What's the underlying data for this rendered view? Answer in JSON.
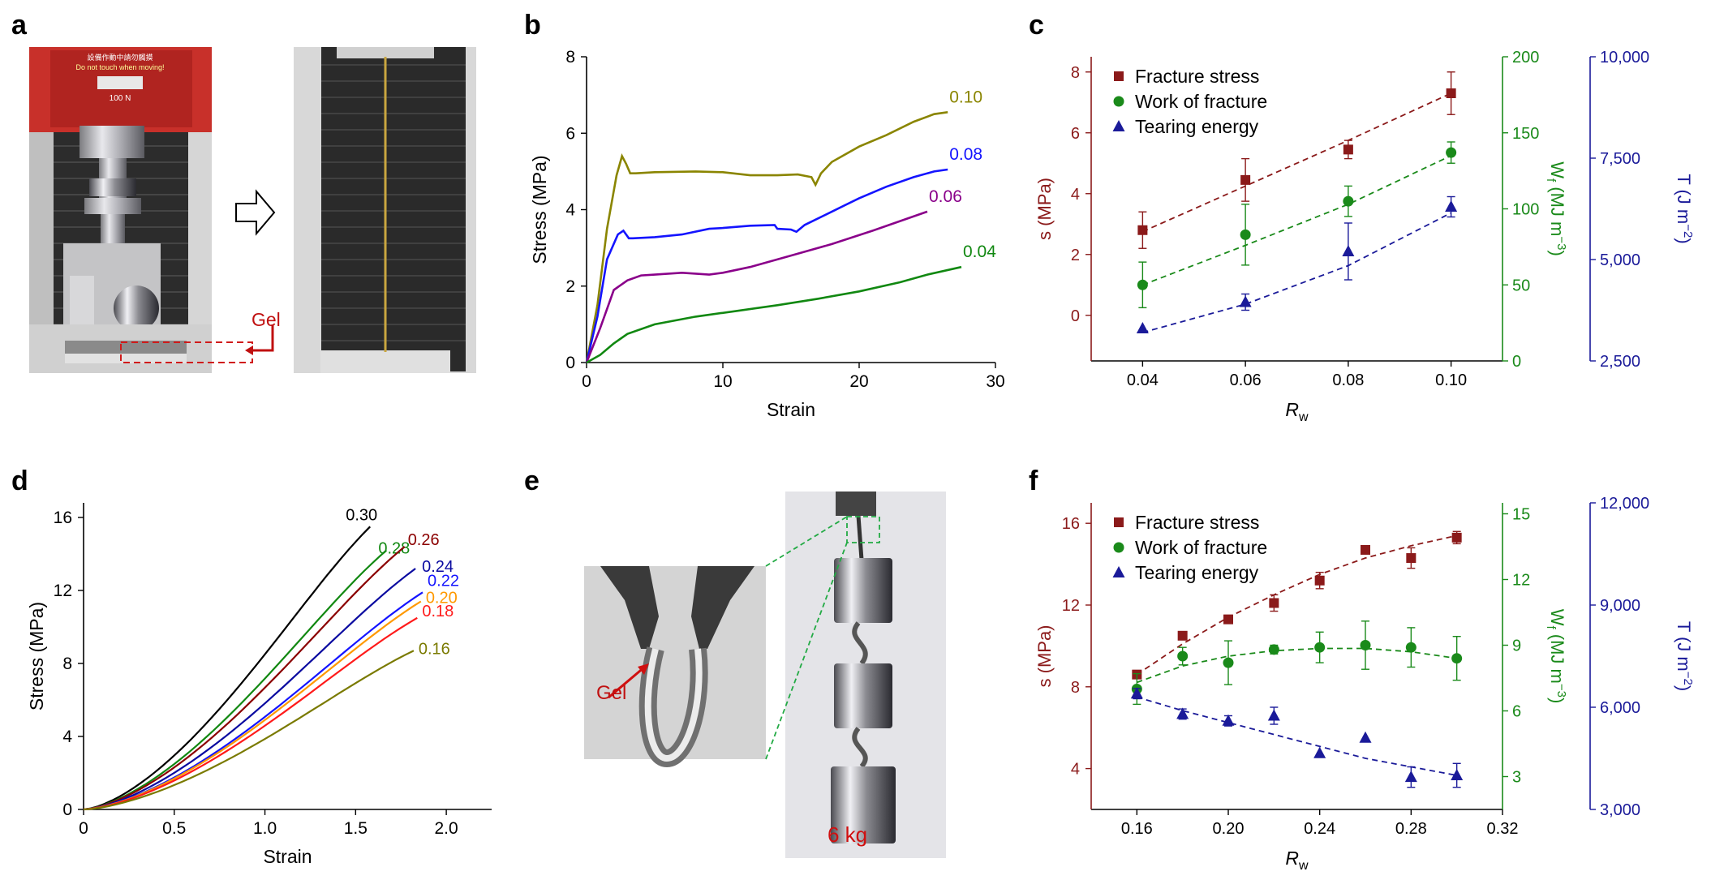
{
  "panels": {
    "a": "a",
    "b": "b",
    "c": "c",
    "d": "d",
    "e": "e",
    "f": "f"
  },
  "photo_labels": {
    "a_gel": "Gel",
    "e_gel": "Gel",
    "e_weight": "6 kg"
  },
  "a_sign": {
    "line1": "設備作動中請勿觸摸",
    "line2": "Do not touch when moving!",
    "line3": "100 N"
  },
  "colors": {
    "olive": "#8a8500",
    "blue": "#1414ff",
    "purple": "#8a008a",
    "green": "#118811",
    "black": "#000000",
    "darkred": "#8b0000",
    "orange": "#ff9900",
    "red": "#ff1a1a",
    "navy": "#0a0aa0",
    "darkolive": "#7a7a00",
    "axis_red": "#8b1a1a",
    "axis_green": "#1a8a1a",
    "axis_blue": "#1a1a99"
  },
  "chart_data": [
    {
      "id": "b",
      "type": "line",
      "xlabel": "Strain",
      "ylabel": "Stress (MPa)",
      "xlim": [
        0,
        30
      ],
      "ylim": [
        0,
        8
      ],
      "xticks": [
        0,
        10,
        20,
        30
      ],
      "yticks": [
        0,
        2,
        4,
        6,
        8
      ],
      "series": [
        {
          "name": "0.10",
          "color": "#8a8500",
          "x": [
            0,
            0.8,
            1.5,
            2.2,
            2.6,
            2.9,
            3.2,
            3.6,
            5,
            8,
            10,
            12,
            14,
            15.5,
            16.5,
            16.8,
            17.2,
            18,
            20,
            22,
            24,
            25.5,
            26.5
          ],
          "y": [
            0,
            1.5,
            3.5,
            4.9,
            5.4,
            5.2,
            4.95,
            4.95,
            4.98,
            5,
            4.98,
            4.9,
            4.9,
            4.92,
            4.85,
            4.65,
            4.95,
            5.25,
            5.65,
            5.95,
            6.3,
            6.5,
            6.55
          ]
        },
        {
          "name": "0.08",
          "color": "#1414ff",
          "x": [
            0,
            0.8,
            1.5,
            2.3,
            2.7,
            3.1,
            3.4,
            5,
            7,
            9,
            10,
            12,
            13.8,
            14,
            15,
            15.4,
            16,
            18,
            20,
            22,
            24,
            25.5,
            26.5
          ],
          "y": [
            0,
            1.2,
            2.7,
            3.35,
            3.45,
            3.25,
            3.25,
            3.28,
            3.35,
            3.5,
            3.52,
            3.58,
            3.6,
            3.5,
            3.48,
            3.42,
            3.6,
            3.95,
            4.3,
            4.6,
            4.85,
            5,
            5.05
          ]
        },
        {
          "name": "0.06",
          "color": "#8a008a",
          "x": [
            0,
            1,
            2,
            3,
            4,
            5,
            7,
            9,
            10,
            12,
            15,
            18,
            21,
            23,
            25
          ],
          "y": [
            0,
            0.9,
            1.9,
            2.15,
            2.28,
            2.3,
            2.35,
            2.3,
            2.35,
            2.5,
            2.8,
            3.1,
            3.45,
            3.7,
            3.95
          ]
        },
        {
          "name": "0.04",
          "color": "#118811",
          "x": [
            0,
            1,
            2,
            3,
            5,
            8,
            11,
            14,
            17,
            20,
            23,
            25,
            27.5
          ],
          "y": [
            0,
            0.2,
            0.5,
            0.75,
            1,
            1.2,
            1.35,
            1.5,
            1.67,
            1.86,
            2.1,
            2.3,
            2.5
          ]
        }
      ]
    },
    {
      "id": "c",
      "type": "scatter",
      "xlabel": "R",
      "xlabel_sub": "w",
      "ylabel_left": "s (MPa)",
      "ylabel_mid": "W",
      "ylabel_mid_sub": "f",
      "ylabel_mid_unit": " (MJ m",
      "ylabel_mid_exp": "−3",
      "ylabel_right": "T (J m",
      "ylabel_right_exp": "−2",
      "xlim": [
        0.03,
        0.11
      ],
      "xticks": [
        0.04,
        0.06,
        0.08,
        0.1
      ],
      "xticklabels": [
        "0.04",
        "0.06",
        "0.08",
        "0.10"
      ],
      "ylim_left": [
        -1.5,
        8.5
      ],
      "yticks_left": [
        0,
        2,
        4,
        6,
        8
      ],
      "ylim_mid": [
        0,
        200
      ],
      "yticks_mid": [
        0,
        50,
        100,
        150,
        200
      ],
      "ylim_right": [
        2500,
        10000
      ],
      "yticks_right": [
        2500,
        5000,
        7500,
        10000
      ],
      "yticklabels_right": [
        "2,500",
        "5,000",
        "7,500",
        "10,000"
      ],
      "legend": [
        "Fracture stress",
        "Work of fracture",
        "Tearing energy"
      ],
      "series": [
        {
          "name": "Fracture stress",
          "axis": "left",
          "marker": "square",
          "color": "#8b1a1a",
          "x": [
            0.04,
            0.06,
            0.08,
            0.1
          ],
          "y": [
            2.8,
            4.45,
            5.45,
            7.3
          ],
          "err": [
            0.6,
            0.7,
            0.3,
            0.7
          ],
          "fit": [
            2.75,
            4.25,
            5.75,
            7.3
          ]
        },
        {
          "name": "Work of fracture",
          "axis": "mid",
          "marker": "circle",
          "color": "#1a8a1a",
          "x": [
            0.04,
            0.06,
            0.08,
            0.1
          ],
          "y": [
            50,
            83,
            105,
            137
          ],
          "err": [
            15,
            20,
            10,
            7
          ],
          "fit": [
            50,
            76,
            103,
            135
          ]
        },
        {
          "name": "Tearing energy",
          "axis": "right",
          "marker": "triangle",
          "color": "#1a1a99",
          "x": [
            0.04,
            0.06,
            0.08,
            0.1
          ],
          "y": [
            3300,
            3950,
            5200,
            6300
          ],
          "err": [
            0,
            200,
            700,
            250
          ],
          "fit": [
            3200,
            3900,
            4850,
            6150
          ]
        }
      ]
    },
    {
      "id": "d",
      "type": "line",
      "xlabel": "Strain",
      "ylabel": "Stress (MPa)",
      "xlim": [
        0,
        2.25
      ],
      "ylim": [
        0,
        16.8
      ],
      "xticks": [
        0,
        0.5,
        1,
        1.5,
        2
      ],
      "xticklabels": [
        "0",
        "0.5",
        "1.0",
        "1.5",
        "2.0"
      ],
      "yticks": [
        0,
        4,
        8,
        12,
        16
      ],
      "series": [
        {
          "name": "0.30",
          "color": "#000000",
          "xmax": 1.58,
          "ymax": 15.5
        },
        {
          "name": "0.28",
          "color": "#118811",
          "xmax": 1.67,
          "ymax": 14.2
        },
        {
          "name": "0.26",
          "color": "#8b0000",
          "xmax": 1.77,
          "ymax": 14.4
        },
        {
          "name": "0.24",
          "color": "#0a0aa0",
          "xmax": 1.83,
          "ymax": 13.2
        },
        {
          "name": "0.22",
          "color": "#1414ff",
          "xmax": 1.87,
          "ymax": 11.9
        },
        {
          "name": "0.20",
          "color": "#ff9900",
          "xmax": 1.86,
          "ymax": 11.4
        },
        {
          "name": "0.18",
          "color": "#ff1a1a",
          "xmax": 1.84,
          "ymax": 10.5
        },
        {
          "name": "0.16",
          "color": "#7a7a00",
          "xmax": 1.82,
          "ymax": 8.7
        }
      ]
    },
    {
      "id": "f",
      "type": "scatter",
      "xlabel": "R",
      "xlabel_sub": "w",
      "ylabel_left": "s (MPa)",
      "ylabel_mid": "W",
      "ylabel_mid_sub": "f",
      "ylabel_mid_unit": " (MJ m",
      "ylabel_mid_exp": "−3",
      "ylabel_right": "T (J m",
      "ylabel_right_exp": "−2",
      "xlim": [
        0.14,
        0.32
      ],
      "xticks": [
        0.16,
        0.2,
        0.24,
        0.28,
        0.32
      ],
      "xticklabels": [
        "0.16",
        "0.20",
        "0.24",
        "0.28",
        "0.32"
      ],
      "ylim_left": [
        2,
        17
      ],
      "yticks_left": [
        4,
        8,
        12,
        16
      ],
      "ylim_mid": [
        1.5,
        15.5
      ],
      "yticks_mid": [
        3,
        6,
        9,
        12,
        15
      ],
      "ylim_right": [
        3000,
        12000
      ],
      "yticks_right": [
        3000,
        6000,
        9000,
        12000
      ],
      "yticklabels_right": [
        "3,000",
        "6,000",
        "9,000",
        "12,000"
      ],
      "legend": [
        "Fracture stress",
        "Work of fracture",
        "Tearing energy"
      ],
      "series": [
        {
          "name": "Fracture stress",
          "axis": "left",
          "marker": "square",
          "color": "#8b1a1a",
          "x": [
            0.16,
            0.18,
            0.2,
            0.22,
            0.24,
            0.26,
            0.28,
            0.3
          ],
          "y": [
            8.6,
            10.5,
            11.3,
            12.1,
            13.2,
            14.7,
            14.3,
            15.3
          ],
          "err": [
            0.2,
            0,
            0.2,
            0.4,
            0.4,
            0,
            0.5,
            0.3
          ],
          "fit": [
            8.6,
            10.1,
            11.4,
            12.5,
            13.5,
            14.3,
            14.9,
            15.4
          ]
        },
        {
          "name": "Work of fracture",
          "axis": "mid",
          "marker": "circle",
          "color": "#1a8a1a",
          "x": [
            0.16,
            0.18,
            0.2,
            0.22,
            0.24,
            0.26,
            0.28,
            0.3
          ],
          "y": [
            7,
            8.5,
            8.2,
            8.8,
            8.9,
            9,
            8.9,
            8.4
          ],
          "err": [
            0.7,
            0.4,
            1,
            0.2,
            0.7,
            1.1,
            0.9,
            1
          ],
          "fit": [
            7.3,
            8.05,
            8.5,
            8.75,
            8.85,
            8.85,
            8.7,
            8.4
          ]
        },
        {
          "name": "Tearing energy",
          "axis": "right",
          "marker": "triangle",
          "color": "#1a1a99",
          "x": [
            0.16,
            0.18,
            0.2,
            0.22,
            0.24,
            0.26,
            0.28,
            0.3
          ],
          "y": [
            6400,
            5800,
            5600,
            5750,
            4650,
            5100,
            3950,
            4000
          ],
          "err": [
            150,
            150,
            150,
            250,
            0,
            0,
            300,
            350
          ],
          "fit": [
            6300,
            5900,
            5550,
            5200,
            4850,
            4500,
            4250,
            4000
          ]
        }
      ]
    }
  ]
}
